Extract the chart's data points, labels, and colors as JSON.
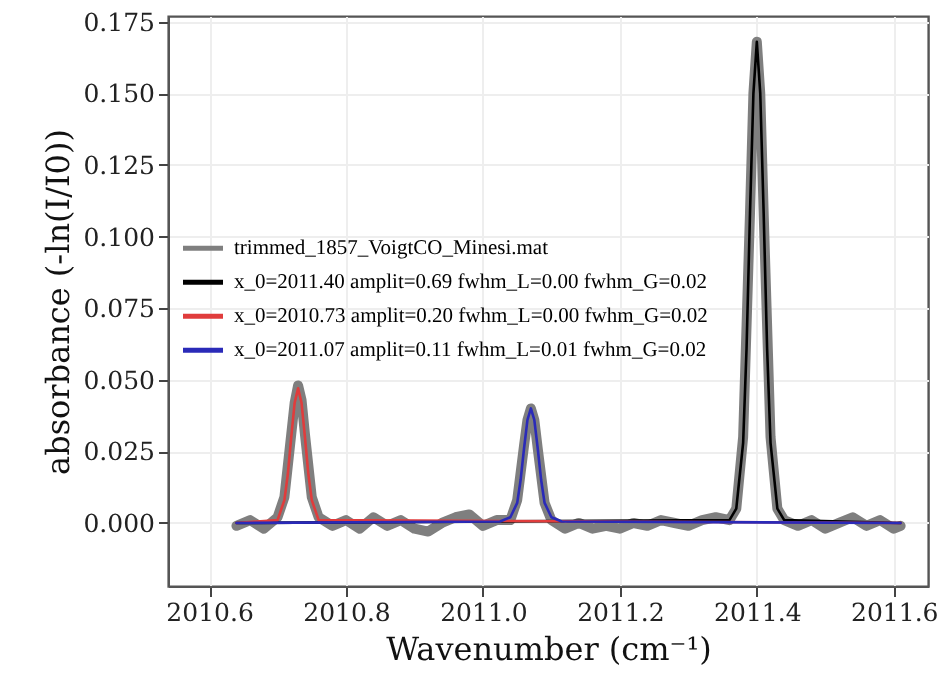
{
  "chart_data": {
    "type": "line",
    "xlabel": "Wavenumber (cm⁻¹)",
    "ylabel": "absorbance (-ln(I/I0))",
    "xlim": [
      2010.54,
      2011.65
    ],
    "ylim": [
      -0.022,
      0.177
    ],
    "xticks": [
      2010.6,
      2010.8,
      {
        "value": 2011.0,
        "label": "2011.0"
      },
      2011.2,
      2011.4,
      2011.6
    ],
    "yticks": [
      {
        "value": 0,
        "label": "0.000"
      },
      0.025,
      {
        "value": 0.05,
        "label": "0.050"
      },
      0.075,
      {
        "value": 0.1,
        "label": "0.100"
      },
      0.125,
      {
        "value": 0.15,
        "label": "0.150"
      },
      0.175
    ],
    "grid": true,
    "legend": "left",
    "line_style": "solid",
    "series": [
      {
        "name": "trimmed_1857_VoigtCO_Minesi.mat",
        "color": "#7f7f7f",
        "x": [
          2010.64,
          2010.66,
          2010.68,
          2010.7,
          2010.71,
          2010.72,
          2010.725,
          2010.73,
          2010.735,
          2010.74,
          2010.75,
          2010.76,
          2010.78,
          2010.8,
          2010.82,
          2010.84,
          2010.86,
          2010.88,
          2010.9,
          2010.92,
          2010.94,
          2010.96,
          2010.98,
          2011.0,
          2011.02,
          2011.04,
          2011.05,
          2011.06,
          2011.065,
          2011.07,
          2011.075,
          2011.08,
          2011.09,
          2011.1,
          2011.12,
          2011.14,
          2011.16,
          2011.18,
          2011.2,
          2011.22,
          2011.24,
          2011.26,
          2011.28,
          2011.3,
          2011.32,
          2011.34,
          2011.36,
          2011.37,
          2011.38,
          2011.39,
          2011.395,
          2011.4,
          2011.405,
          2011.41,
          2011.42,
          2011.43,
          2011.44,
          2011.46,
          2011.48,
          2011.5,
          2011.52,
          2011.54,
          2011.56,
          2011.58,
          2011.6,
          2011.61
        ],
        "values": [
          -0.001,
          0.001,
          -0.002,
          0.002,
          0.009,
          0.031,
          0.042,
          0.048,
          0.043,
          0.031,
          0.009,
          0.002,
          -0.001,
          0.001,
          -0.002,
          0.002,
          -0.001,
          0.001,
          -0.002,
          -0.003,
          0.0,
          0.002,
          0.003,
          -0.001,
          0.001,
          0.001,
          0.008,
          0.027,
          0.036,
          0.04,
          0.036,
          0.026,
          0.007,
          0.001,
          -0.002,
          0.0,
          -0.002,
          -0.001,
          -0.002,
          0.0,
          -0.001,
          0.001,
          0.0,
          -0.001,
          0.001,
          0.002,
          0.001,
          0.005,
          0.03,
          0.108,
          0.15,
          0.168,
          0.15,
          0.108,
          0.03,
          0.005,
          0.001,
          -0.001,
          0.001,
          -0.002,
          0.0,
          0.002,
          -0.001,
          0.001,
          -0.002,
          -0.001
        ]
      },
      {
        "name": "x_0=2011.40 amplit=0.69 fwhm_L=0.00 fwhm_G=0.02",
        "color": "#000000",
        "x": [
          2010.64,
          2011.36,
          2011.37,
          2011.38,
          2011.385,
          2011.39,
          2011.395,
          2011.4,
          2011.405,
          2011.41,
          2011.415,
          2011.42,
          2011.43,
          2011.44,
          2011.61
        ],
        "values": [
          0.0,
          0.001,
          0.005,
          0.028,
          0.061,
          0.108,
          0.15,
          0.168,
          0.15,
          0.108,
          0.061,
          0.028,
          0.005,
          0.001,
          0.0
        ]
      },
      {
        "name": "x_0=2010.73 amplit=0.20 fwhm_L=0.00 fwhm_G=0.02",
        "color": "#e03c3c",
        "x": [
          2010.64,
          2010.7,
          2010.71,
          2010.715,
          2010.72,
          2010.725,
          2010.73,
          2010.735,
          2010.74,
          2010.745,
          2010.75,
          2010.76,
          2011.61
        ],
        "values": [
          0.0,
          0.001,
          0.008,
          0.017,
          0.03,
          0.042,
          0.047,
          0.042,
          0.03,
          0.017,
          0.008,
          0.001,
          0.0
        ]
      },
      {
        "name": "x_0=2011.07 amplit=0.11 fwhm_L=0.01 fwhm_G=0.02",
        "color": "#2a2ab8",
        "x": [
          2010.64,
          2011.025,
          2011.04,
          2011.05,
          2011.055,
          2011.06,
          2011.065,
          2011.07,
          2011.075,
          2011.08,
          2011.085,
          2011.09,
          2011.1,
          2011.115,
          2011.61
        ],
        "values": [
          0.0,
          0.0005,
          0.002,
          0.007,
          0.015,
          0.026,
          0.036,
          0.04,
          0.036,
          0.026,
          0.015,
          0.007,
          0.002,
          0.0005,
          0.0
        ]
      }
    ]
  }
}
